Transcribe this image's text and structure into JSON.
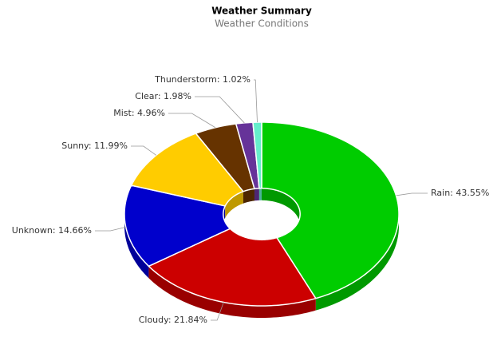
{
  "chart_data": {
    "type": "pie",
    "donut": true,
    "title": "Weather Summary",
    "subtitle": "Weather Conditions",
    "values": [
      43.55,
      21.84,
      14.66,
      11.99,
      4.96,
      1.98,
      1.02
    ],
    "value_labels": [
      "Rain: 43.55%",
      "Cloudy: 21.84%",
      "Unknown: 14.66%",
      "Sunny: 11.99%",
      "Mist: 4.96%",
      "Clear: 1.98%",
      "Thunderstorm: 1.02%"
    ],
    "colors": [
      "#00cc00",
      "#cc0000",
      "#0000cc",
      "#ffcc00",
      "#663300",
      "#663399",
      "#66eecc"
    ]
  }
}
